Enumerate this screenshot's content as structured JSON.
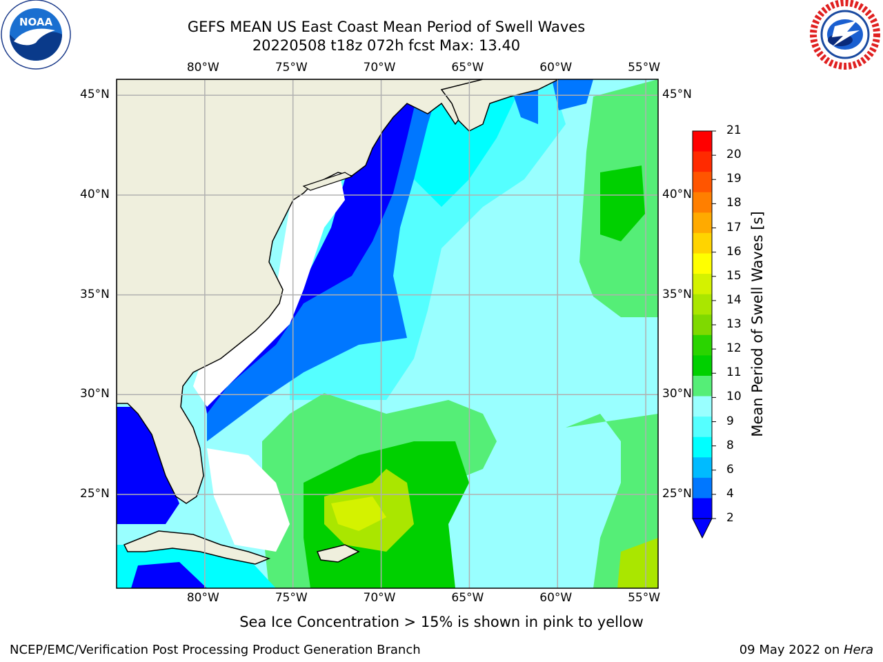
{
  "header": {
    "title_line1": "GEFS MEAN US East Coast Mean Period of Swell Waves",
    "title_line2": "20220508 t18z 072h fcst   Max: 13.40"
  },
  "logos": {
    "left": {
      "name": "noaa-logo",
      "text": "NOAA",
      "ring_text": "NATIONAL OCEANIC AND ATMOSPHERIC ADMINISTRATION · U.S. DEPARTMENT OF COMMERCE"
    },
    "right": {
      "name": "nws-logo",
      "ring_text": "NATIONAL WEATHER SERVICE"
    }
  },
  "map": {
    "lon_labels": [
      "80°W",
      "75°W",
      "70°W",
      "65°W",
      "60°W",
      "55°W"
    ],
    "lat_labels": [
      "45°N",
      "40°N",
      "35°N",
      "30°N",
      "25°N"
    ],
    "lon_range": [
      -85,
      -54.3
    ],
    "lat_range": [
      20.3,
      45.8
    ]
  },
  "colorbar": {
    "label": "Mean Period of Swell Waves [s]",
    "ticks": [
      "21",
      "20",
      "19",
      "18",
      "17",
      "16",
      "15",
      "14",
      "13",
      "12",
      "11",
      "10",
      "9",
      "8",
      "6",
      "4",
      "2"
    ],
    "colors": [
      "#ff0000",
      "#ff2a00",
      "#ff5500",
      "#ff7f00",
      "#ffaa00",
      "#ffd400",
      "#ffff00",
      "#d4f200",
      "#aae600",
      "#7fd900",
      "#2ad400",
      "#00d000",
      "#55ee77",
      "#99ffff",
      "#55ffff",
      "#00ffff",
      "#00bbff",
      "#0077ff",
      "#0000ff"
    ],
    "under_color": "#0000ff"
  },
  "note": "Sea Ice Concentration > 15% is shown in pink to yellow",
  "footer": {
    "left": "NCEP/EMC/Verification Post Processing Product Generation Branch",
    "right_date": "09 May 2022 on ",
    "right_host": "Hera"
  }
}
